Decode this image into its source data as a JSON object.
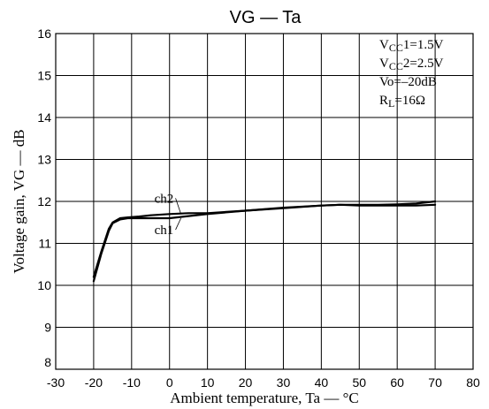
{
  "chart_data": {
    "type": "line",
    "title": "VG — Ta",
    "xlabel": "Ambient temperature, Ta — °C",
    "ylabel": "Voltage gain, VG — dB",
    "xlim": [
      -30,
      80
    ],
    "ylim": [
      8,
      16
    ],
    "x_ticks": [
      -30,
      -20,
      -10,
      0,
      10,
      20,
      30,
      40,
      50,
      60,
      70,
      80
    ],
    "y_ticks": [
      8,
      9,
      10,
      11,
      12,
      13,
      14,
      15,
      16
    ],
    "grid": true,
    "conditions": [
      {
        "main": "V",
        "sub": "CC",
        "rest": "1=1.5V"
      },
      {
        "main": "V",
        "sub": "CC",
        "rest": "2=2.5V"
      },
      {
        "main": "Vo=–20dB",
        "sub": "",
        "rest": ""
      },
      {
        "main": "R",
        "sub": "L",
        "rest": "=16Ω"
      }
    ],
    "series": [
      {
        "name": "ch2",
        "x": [
          -20,
          -18,
          -16,
          -15,
          -13,
          -11,
          -8,
          -5,
          0,
          5,
          10,
          20,
          30,
          40,
          45,
          50,
          55,
          60,
          65,
          70
        ],
        "y": [
          10.2,
          10.8,
          11.35,
          11.5,
          11.6,
          11.62,
          11.64,
          11.67,
          11.7,
          11.72,
          11.72,
          11.78,
          11.85,
          11.9,
          11.92,
          11.92,
          11.92,
          11.93,
          11.95,
          12.0
        ]
      },
      {
        "name": "ch1",
        "x": [
          -20,
          -18,
          -16,
          -15,
          -13,
          -11,
          -8,
          -5,
          0,
          5,
          10,
          20,
          30,
          40,
          45,
          50,
          55,
          60,
          65,
          70
        ],
        "y": [
          10.1,
          10.75,
          11.3,
          11.48,
          11.57,
          11.6,
          11.6,
          11.6,
          11.6,
          11.65,
          11.7,
          11.78,
          11.84,
          11.9,
          11.92,
          11.9,
          11.9,
          11.9,
          11.9,
          11.92
        ]
      }
    ],
    "series_labels": [
      {
        "text": "ch2",
        "x": -4,
        "y": 11.97,
        "anchor_x": 3,
        "anchor_y": 11.7
      },
      {
        "text": "ch1",
        "x": -4,
        "y": 11.22,
        "anchor_x": 3,
        "anchor_y": 11.6
      }
    ]
  }
}
